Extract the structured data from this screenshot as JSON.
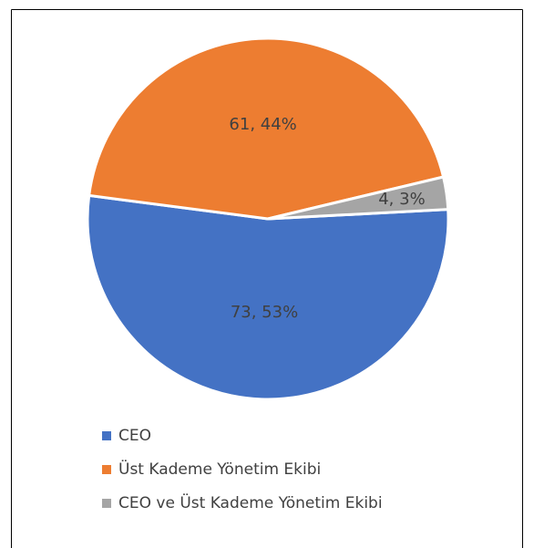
{
  "chart_data": {
    "type": "pie",
    "categories": [
      "CEO",
      "Üst Kademe Yönetim Ekibi",
      "CEO ve Üst Kademe Yönetim Ekibi"
    ],
    "values": [
      73,
      61,
      4
    ],
    "value_labels": [
      "73, 53%",
      "61, 44%",
      "4, 3%"
    ],
    "colors": [
      "#4472c4",
      "#ed7d31",
      "#a5a5a5"
    ],
    "legend": "bottom"
  }
}
